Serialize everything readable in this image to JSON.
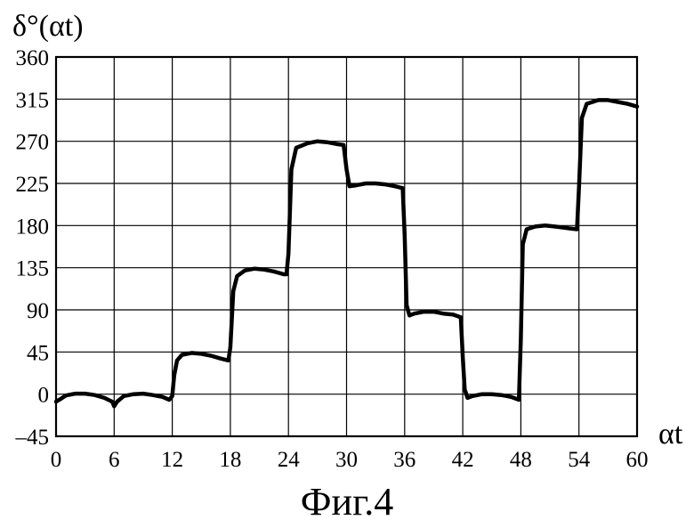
{
  "chart_data": {
    "type": "line",
    "title": "",
    "caption": "Фиг.4",
    "ylabel": "δ°(αt)",
    "xlabel": "αt",
    "xlim": [
      0,
      60
    ],
    "ylim": [
      -45,
      360
    ],
    "xticks": [
      0,
      6,
      12,
      18,
      24,
      30,
      36,
      42,
      48,
      54,
      60
    ],
    "yticks": [
      -45,
      0,
      45,
      90,
      135,
      180,
      225,
      270,
      315,
      360
    ],
    "grid": true,
    "series": [
      {
        "values": [
          [
            0,
            -8
          ],
          [
            0.5,
            -5
          ],
          [
            1,
            -1.5
          ],
          [
            2,
            0.5
          ],
          [
            3,
            0.5
          ],
          [
            4,
            -1
          ],
          [
            5,
            -4
          ],
          [
            5.8,
            -8
          ],
          [
            6,
            -13
          ],
          [
            6.3,
            -8
          ],
          [
            7,
            -2
          ],
          [
            8,
            0
          ],
          [
            9,
            0.5
          ],
          [
            10,
            -1
          ],
          [
            11,
            -3
          ],
          [
            11.7,
            -6
          ],
          [
            12,
            -2
          ],
          [
            12.2,
            20
          ],
          [
            12.5,
            36
          ],
          [
            13,
            42
          ],
          [
            14,
            44
          ],
          [
            15,
            43
          ],
          [
            16,
            41
          ],
          [
            17,
            38
          ],
          [
            17.8,
            36
          ],
          [
            18,
            50
          ],
          [
            18.3,
            110
          ],
          [
            18.7,
            126
          ],
          [
            19.5,
            132
          ],
          [
            20.5,
            134
          ],
          [
            21.5,
            133
          ],
          [
            22.5,
            131
          ],
          [
            23.5,
            128
          ],
          [
            23.8,
            128
          ],
          [
            24,
            150
          ],
          [
            24.3,
            240
          ],
          [
            24.8,
            263
          ],
          [
            26,
            268
          ],
          [
            27,
            270
          ],
          [
            28,
            269
          ],
          [
            29,
            267
          ],
          [
            29.7,
            266
          ],
          [
            30,
            240
          ],
          [
            30.3,
            222
          ],
          [
            31,
            223
          ],
          [
            32,
            225
          ],
          [
            33,
            225
          ],
          [
            34,
            224
          ],
          [
            35,
            222
          ],
          [
            35.8,
            220
          ],
          [
            36,
            170
          ],
          [
            36.2,
            95
          ],
          [
            36.5,
            84
          ],
          [
            37,
            86
          ],
          [
            38,
            88
          ],
          [
            39,
            88
          ],
          [
            40,
            86
          ],
          [
            41,
            85
          ],
          [
            41.8,
            82
          ],
          [
            42,
            40
          ],
          [
            42.2,
            5
          ],
          [
            42.5,
            -4
          ],
          [
            43,
            -2
          ],
          [
            44,
            0
          ],
          [
            45,
            0
          ],
          [
            46,
            -1
          ],
          [
            47,
            -3
          ],
          [
            47.8,
            -6
          ],
          [
            48,
            60
          ],
          [
            48.2,
            160
          ],
          [
            48.6,
            176
          ],
          [
            49.5,
            179
          ],
          [
            50.5,
            180
          ],
          [
            51.5,
            179
          ],
          [
            53,
            177
          ],
          [
            53.8,
            176
          ],
          [
            54,
            220
          ],
          [
            54.3,
            295
          ],
          [
            54.8,
            310
          ],
          [
            56,
            314
          ],
          [
            57,
            314
          ],
          [
            58,
            312
          ],
          [
            59,
            310
          ],
          [
            60,
            307
          ]
        ]
      }
    ]
  }
}
